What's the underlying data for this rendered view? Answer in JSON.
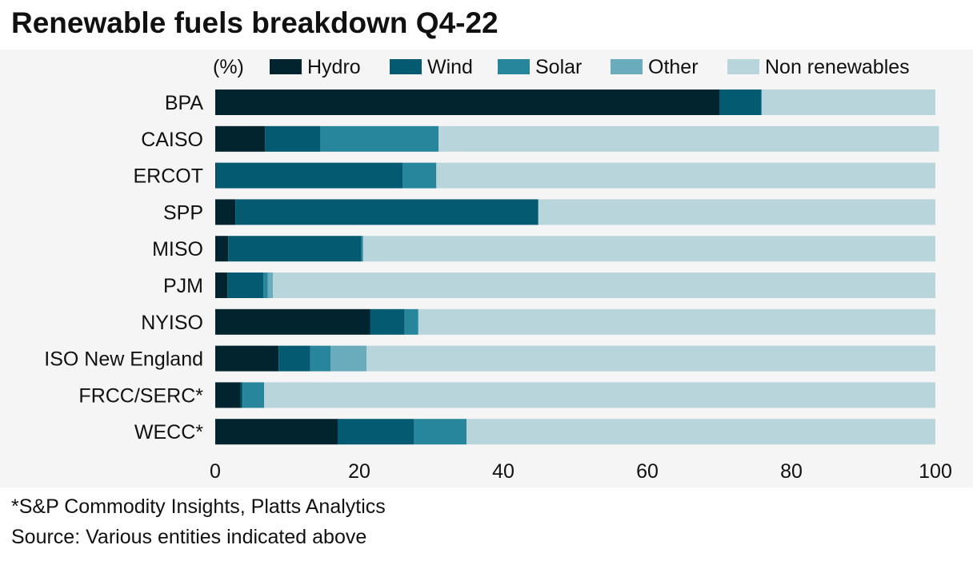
{
  "title": "Renewable fuels breakdown Q4-22",
  "footnote": "*S&P Commodity Insights, Platts Analytics",
  "source": "Source: Various entities indicated above",
  "colors": {
    "Hydro": "#02242e",
    "Wind": "#035a71",
    "Solar": "#27859c",
    "Other": "#6aabbc",
    "Non renewables": "#b8d5dc",
    "plot_background": "#f5f5f5",
    "text": "#111111"
  },
  "chart_data": {
    "type": "bar",
    "orientation": "horizontal",
    "stacked": true,
    "title": "Renewable fuels breakdown Q4-22",
    "unit_label": "(%)",
    "xlim": [
      0,
      100
    ],
    "x_ticks": [
      0,
      20,
      40,
      60,
      80,
      100
    ],
    "grid": false,
    "legend_position": "top",
    "categories": [
      "BPA",
      "CAISO",
      "ERCOT",
      "SPP",
      "MISO",
      "PJM",
      "NYISO",
      "ISO New England",
      "FRCC/SERC*",
      "WECC*"
    ],
    "series": [
      {
        "name": "Hydro",
        "values": [
          70.0,
          6.9,
          0.1,
          2.8,
          1.8,
          1.7,
          21.5,
          8.8,
          3.5,
          17.0
        ]
      },
      {
        "name": "Wind",
        "values": [
          5.8,
          7.7,
          25.9,
          42.0,
          18.5,
          5.0,
          4.8,
          4.4,
          0.3,
          10.6
        ]
      },
      {
        "name": "Solar",
        "values": [
          0.1,
          16.4,
          4.7,
          0.1,
          0.2,
          0.6,
          1.9,
          2.8,
          3.0,
          7.3
        ]
      },
      {
        "name": "Other",
        "values": [
          0.0,
          0.0,
          0.0,
          0.0,
          0.0,
          0.7,
          0.0,
          5.0,
          0.0,
          0.0
        ]
      },
      {
        "name": "Non renewables",
        "values": [
          24.1,
          69.5,
          69.3,
          55.1,
          79.5,
          92.0,
          71.8,
          79.0,
          93.2,
          65.1
        ]
      }
    ]
  }
}
